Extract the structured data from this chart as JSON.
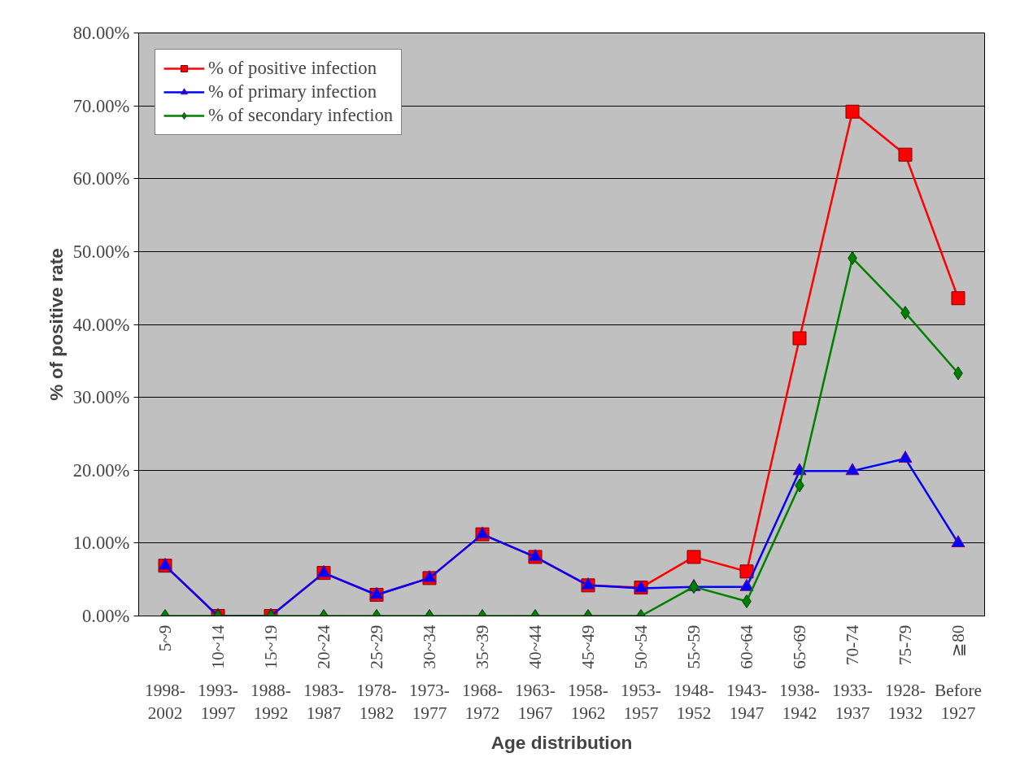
{
  "chart_data": {
    "type": "line",
    "annotations": [
      "Age distribution"
    ],
    "ylabel": "% of positive rate",
    "categories": [
      "5~9\n1998-\n2002",
      "10~14\n1993-\n1997",
      "15~19\n1988-\n1992",
      "20~24\n1983-\n1987",
      "25~29\n1978-\n1982",
      "30~34\n1973-\n1977",
      "35~39\n1968-\n1972",
      "40~44\n1963-\n1967",
      "45~49\n1958-\n1962",
      "50~54\n1953-\n1957",
      "55~59\n1948-\n1952",
      "60~64\n1943-\n1947",
      "65~69\n1938-\n1942",
      "70-74\n1933-\n1937",
      "75-79\n1928-\n1932",
      "≧80\nBefore\n1927"
    ],
    "series": [
      {
        "name": "% of positive infection",
        "color": "#ff0000",
        "marker": "square",
        "values": [
          6.9,
          0,
          0,
          5.9,
          2.9,
          5.2,
          11.2,
          8.1,
          4.2,
          3.9,
          8.1,
          6.1,
          38.1,
          69.2,
          63.3,
          43.6
        ]
      },
      {
        "name": "% of primary infection",
        "color": "#0000ff",
        "marker": "triangle",
        "values": [
          6.9,
          0,
          0,
          5.9,
          2.9,
          5.2,
          11.2,
          8.1,
          4.2,
          3.8,
          4.0,
          4.0,
          19.9,
          19.9,
          21.6,
          10.0
        ]
      },
      {
        "name": "% of secondary infection",
        "color": "#008000",
        "marker": "diamond",
        "values": [
          0,
          0,
          0,
          0,
          0,
          0,
          0,
          0,
          0,
          0,
          4.0,
          2.0,
          17.9,
          49.1,
          41.6,
          33.3
        ]
      }
    ],
    "ylim": [
      0,
      80
    ],
    "yticks": [
      {
        "value": 0,
        "label": "0.00%"
      },
      {
        "value": 10,
        "label": "10.00%"
      },
      {
        "value": 20,
        "label": "20.00%"
      },
      {
        "value": 30,
        "label": "30.00%"
      },
      {
        "value": 40,
        "label": "40.00%"
      },
      {
        "value": 50,
        "label": "50.00%"
      },
      {
        "value": 60,
        "label": "60.00%"
      },
      {
        "value": 70,
        "label": "70.00%"
      },
      {
        "value": 80,
        "label": "80.00%"
      }
    ],
    "grid": "y",
    "legend": "top left",
    "line_style": "solid"
  }
}
